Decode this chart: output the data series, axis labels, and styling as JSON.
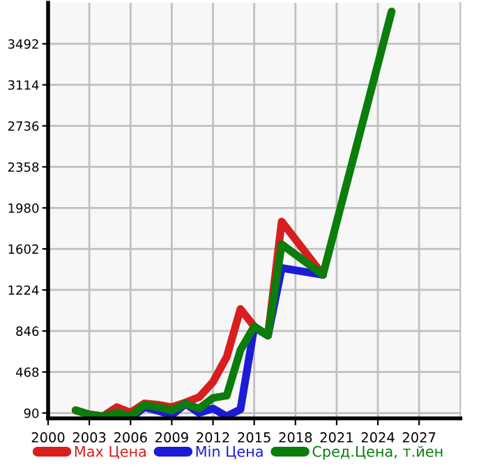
{
  "chart_data": {
    "type": "line",
    "x": [
      2002,
      2003,
      2004,
      2005,
      2006,
      2007,
      2008,
      2009,
      2010,
      2011,
      2012,
      2013,
      2014,
      2015,
      2016,
      2017,
      2020,
      2025
    ],
    "series": [
      {
        "name": "Max Цена",
        "color": "#d81e1e",
        "values": [
          115,
          77,
          60,
          144,
          94,
          178,
          166,
          144,
          187,
          237,
          376,
          607,
          1048,
          888,
          804,
          1854,
          1363,
          null
        ]
      },
      {
        "name": "Min Цена",
        "color": "#1c1cd8",
        "values": [
          null,
          null,
          null,
          null,
          40,
          144,
          111,
          69,
          174,
          90,
          132,
          60,
          124,
          880,
          804,
          1426,
          1363,
          null
        ]
      },
      {
        "name": "Сред.Цена, т.йен",
        "color": "#0a7d0a",
        "values": [
          115,
          77,
          60,
          94,
          60,
          166,
          144,
          115,
          174,
          132,
          229,
          250,
          670,
          888,
          804,
          1644,
          1363,
          3790
        ]
      }
    ],
    "xlim": [
      2000,
      2030
    ],
    "xticks": [
      2000,
      2003,
      2006,
      2009,
      2012,
      2015,
      2018,
      2021,
      2024,
      2027
    ],
    "ylim": [
      40,
      3870
    ],
    "yticks": [
      90,
      468,
      846,
      1224,
      1602,
      1980,
      2358,
      2736,
      3114,
      3492
    ],
    "grid": true,
    "legend": "bottom",
    "marker": "none",
    "line_style": "solid"
  }
}
